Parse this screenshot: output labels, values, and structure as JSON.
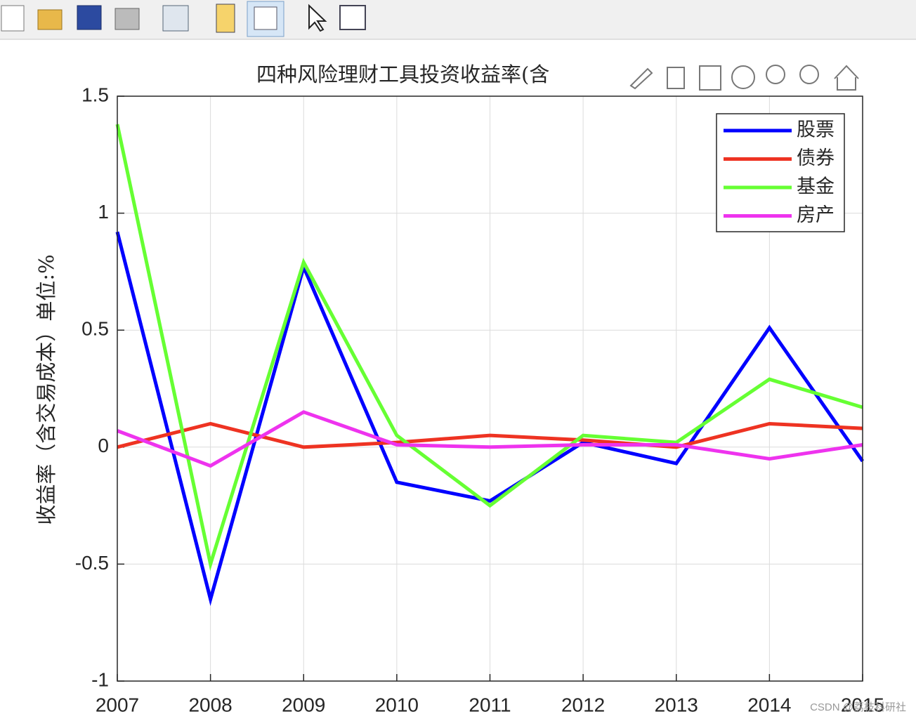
{
  "chart_data": {
    "type": "line",
    "title": "四种风险理财工具投资收益率(含",
    "ylabel": "收益率（含交易成本）单位:%",
    "x": [
      2007,
      2008,
      2009,
      2010,
      2011,
      2012,
      2013,
      2014,
      2015
    ],
    "xlim": [
      2007,
      2015
    ],
    "xticks": [
      2007,
      2008,
      2009,
      2010,
      2011,
      2012,
      2013,
      2014,
      2015
    ],
    "ylim": [
      -1,
      1.5
    ],
    "yticks": [
      -1,
      -0.5,
      0,
      0.5,
      1,
      1.5
    ],
    "grid": true,
    "legend": "upper right",
    "series": [
      {
        "name": "股票",
        "color": "#0000ff",
        "values": [
          0.92,
          -0.65,
          0.77,
          -0.15,
          -0.23,
          0.02,
          -0.07,
          0.51,
          -0.06
        ]
      },
      {
        "name": "债券",
        "color": "#ee3322",
        "values": [
          0,
          0.1,
          0,
          0.02,
          0.05,
          0.03,
          0,
          0.1,
          0.08
        ]
      },
      {
        "name": "基金",
        "color": "#66ff33",
        "values": [
          1.38,
          -0.5,
          0.79,
          0.05,
          -0.25,
          0.05,
          0.02,
          0.29,
          0.17
        ]
      },
      {
        "name": "房产",
        "color": "#ee33ee",
        "values": [
          0.07,
          -0.08,
          0.15,
          0.01,
          0,
          0.01,
          0.01,
          -0.05,
          0.01
        ]
      }
    ]
  },
  "watermark": "CSDN @荔枝科研社"
}
